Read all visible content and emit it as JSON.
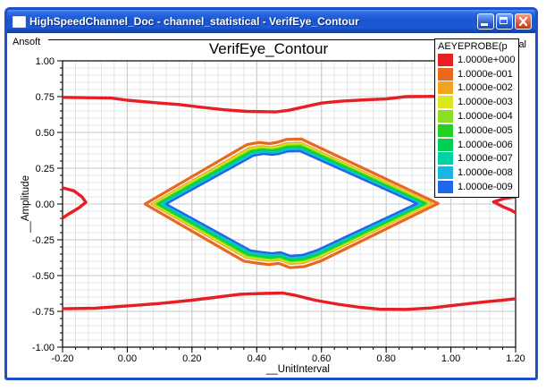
{
  "window": {
    "title": "HighSpeedChannel_Doc - channel_statistical - VerifEye_Contour"
  },
  "plot": {
    "brand": "Ansoft",
    "title": "VerifEye_Contour",
    "corner_text": "al"
  },
  "chart_data": {
    "type": "contour",
    "title": "VerifEye_Contour",
    "xlabel": "__UnitInterval",
    "ylabel": "__Amplitude",
    "xlim": [
      -0.2,
      1.2
    ],
    "ylim": [
      -1.0,
      1.0
    ],
    "xticks": [
      {
        "v": -0.2,
        "label": "-0.20"
      },
      {
        "v": 0.0,
        "label": "0.00"
      },
      {
        "v": 0.2,
        "label": "0.20"
      },
      {
        "v": 0.4,
        "label": "0.40"
      },
      {
        "v": 0.6,
        "label": "0.60"
      },
      {
        "v": 0.8,
        "label": "0.80"
      },
      {
        "v": 1.0,
        "label": "1.00"
      },
      {
        "v": 1.2,
        "label": "1.20"
      }
    ],
    "yticks": [
      {
        "v": 1.0,
        "label": "1.00"
      },
      {
        "v": 0.75,
        "label": "0.75"
      },
      {
        "v": 0.5,
        "label": "0.50"
      },
      {
        "v": 0.25,
        "label": "0.25"
      },
      {
        "v": 0.0,
        "label": "0.00"
      },
      {
        "v": -0.25,
        "label": "-0.25"
      },
      {
        "v": -0.5,
        "label": "-0.50"
      },
      {
        "v": -0.75,
        "label": "-0.75"
      },
      {
        "v": -1.0,
        "label": "-1.00"
      }
    ],
    "grid": {
      "x_minor_step": 0.04,
      "y_minor_step": 0.05,
      "minor_color": "#e4e4e4",
      "major_color": "#c8c8c8",
      "grid_on": true
    },
    "legend": {
      "position": "top-right",
      "title": "AEYEPROBE(p",
      "entries": [
        {
          "label": "1.0000e+000",
          "color": "#e81e25"
        },
        {
          "label": "1.0000e-001",
          "color": "#e8681c"
        },
        {
          "label": "1.0000e-002",
          "color": "#f0a51c"
        },
        {
          "label": "1.0000e-003",
          "color": "#d9e821"
        },
        {
          "label": "1.0000e-004",
          "color": "#8ade23"
        },
        {
          "label": "1.0000e-005",
          "color": "#22d022"
        },
        {
          "label": "1.0000e-006",
          "color": "#00cf55"
        },
        {
          "label": "1.0000e-007",
          "color": "#00d2a6"
        },
        {
          "label": "1.0000e-008",
          "color": "#18b6e0"
        },
        {
          "label": "1.0000e-009",
          "color": "#1f67e8"
        }
      ]
    },
    "contours": {
      "red_level": "1.0000e+000",
      "red_color": "#e81e25",
      "red_stroke_width": 3.4,
      "red_polylines": {
        "top": [
          [
            -0.2,
            0.745
          ],
          [
            -0.05,
            0.74
          ],
          [
            0.0,
            0.725
          ],
          [
            0.1,
            0.705
          ],
          [
            0.16,
            0.695
          ],
          [
            0.22,
            0.678
          ],
          [
            0.3,
            0.658
          ],
          [
            0.37,
            0.647
          ],
          [
            0.46,
            0.643
          ],
          [
            0.5,
            0.655
          ],
          [
            0.55,
            0.68
          ],
          [
            0.6,
            0.705
          ],
          [
            0.66,
            0.718
          ],
          [
            0.74,
            0.728
          ],
          [
            0.8,
            0.734
          ],
          [
            0.86,
            0.75
          ],
          [
            0.97,
            0.752
          ],
          [
            1.05,
            0.752
          ],
          [
            1.1,
            0.748
          ],
          [
            1.15,
            0.728
          ],
          [
            1.2,
            0.73
          ]
        ],
        "bottom": [
          [
            -0.2,
            -0.732
          ],
          [
            -0.1,
            -0.728
          ],
          [
            0.0,
            -0.712
          ],
          [
            0.1,
            -0.695
          ],
          [
            0.2,
            -0.672
          ],
          [
            0.28,
            -0.65
          ],
          [
            0.35,
            -0.63
          ],
          [
            0.42,
            -0.625
          ],
          [
            0.48,
            -0.622
          ],
          [
            0.52,
            -0.638
          ],
          [
            0.58,
            -0.672
          ],
          [
            0.65,
            -0.7
          ],
          [
            0.72,
            -0.722
          ],
          [
            0.78,
            -0.735
          ],
          [
            0.86,
            -0.736
          ],
          [
            0.94,
            -0.726
          ],
          [
            1.02,
            -0.705
          ],
          [
            1.1,
            -0.685
          ],
          [
            1.16,
            -0.672
          ],
          [
            1.2,
            -0.662
          ]
        ],
        "left": [
          [
            -0.2,
            0.113
          ],
          [
            -0.165,
            0.092
          ],
          [
            -0.14,
            0.05
          ],
          [
            -0.128,
            0.012
          ],
          [
            -0.15,
            -0.028
          ],
          [
            -0.18,
            -0.068
          ],
          [
            -0.2,
            -0.098
          ]
        ],
        "right": [
          [
            1.2,
            0.05
          ],
          [
            1.165,
            0.038
          ],
          [
            1.132,
            0.015
          ],
          [
            1.16,
            -0.018
          ],
          [
            1.185,
            -0.042
          ],
          [
            1.2,
            -0.062
          ]
        ]
      },
      "eye": {
        "center": [
          0.5075,
          0.0
        ],
        "base_polygon": [
          [
            0.055,
            0.0
          ],
          [
            0.37,
            0.415
          ],
          [
            0.408,
            0.43
          ],
          [
            0.44,
            0.422
          ],
          [
            0.464,
            0.431
          ],
          [
            0.492,
            0.451
          ],
          [
            0.538,
            0.454
          ],
          [
            0.96,
            0.004
          ],
          [
            0.598,
            -0.398
          ],
          [
            0.548,
            -0.437
          ],
          [
            0.504,
            -0.445
          ],
          [
            0.468,
            -0.415
          ],
          [
            0.437,
            -0.423
          ],
          [
            0.401,
            -0.413
          ],
          [
            0.36,
            -0.399
          ]
        ],
        "rings": [
          {
            "level": "1.0000e-001",
            "color": "#e8681c",
            "sx": 1.0,
            "sy": 1.0,
            "w": 3.2
          },
          {
            "level": "1.0000e-002",
            "color": "#f0a51c",
            "sx": 0.956,
            "sy": 0.94,
            "w": 2.4
          },
          {
            "level": "1.0000e-003",
            "color": "#d9e821",
            "sx": 0.942,
            "sy": 0.922,
            "w": 2.4
          },
          {
            "level": "1.0000e-004",
            "color": "#8ade23",
            "sx": 0.928,
            "sy": 0.904,
            "w": 2.4
          },
          {
            "level": "1.0000e-005",
            "color": "#22d022",
            "sx": 0.914,
            "sy": 0.886,
            "w": 2.4
          },
          {
            "level": "1.0000e-006",
            "color": "#00cf55",
            "sx": 0.9,
            "sy": 0.868,
            "w": 2.4
          },
          {
            "level": "1.0000e-007",
            "color": "#00d2a6",
            "sx": 0.886,
            "sy": 0.85,
            "w": 2.4
          },
          {
            "level": "1.0000e-008",
            "color": "#18b6e0",
            "sx": 0.871,
            "sy": 0.832,
            "w": 2.4
          },
          {
            "level": "1.0000e-009",
            "color": "#1f67e8",
            "sx": 0.856,
            "sy": 0.814,
            "w": 2.4
          }
        ]
      }
    }
  }
}
